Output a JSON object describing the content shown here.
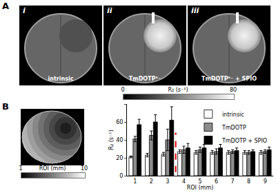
{
  "figure": {
    "panel_A": {
      "label": "A",
      "images": [
        {
          "label": "i",
          "caption": "intrinsic"
        },
        {
          "label": "ii",
          "caption": "TmDOTP⁵⁻"
        },
        {
          "label": "iii",
          "caption": "TmDOTP⁵⁻ + SPIO"
        }
      ],
      "colorbar": {
        "title": "R₂ (s⁻¹)",
        "range": [
          0,
          80
        ],
        "ticks": [
          0,
          80
        ]
      }
    },
    "panel_B": {
      "label": "B",
      "colorbar": {
        "title": "ROI (mm)",
        "range": [
          1,
          10
        ],
        "ticks": [
          1,
          10
        ]
      }
    }
  },
  "chart_data": {
    "type": "bar",
    "x_label": "ROI (mm)",
    "y_label": "R₂ (s⁻¹)",
    "categories": [
      "1",
      "2",
      "3",
      "4",
      "5",
      "6",
      "7",
      "8",
      "9"
    ],
    "series": [
      {
        "name": "intrinsic",
        "color": "#ffffff",
        "values": [
          21,
          23,
          24,
          27,
          26,
          26,
          26,
          26,
          26
        ],
        "error": [
          1,
          2,
          2,
          2,
          2,
          2,
          2,
          2,
          2
        ]
      },
      {
        "name": "TmDOTP",
        "color": "#8c8c8c",
        "values": [
          41,
          45,
          40,
          29,
          29,
          27,
          27,
          26,
          27
        ],
        "error": [
          3,
          5,
          12,
          4,
          3,
          3,
          2,
          2,
          2
        ]
      },
      {
        "name": "TmDOTP + SPIO",
        "color": "#000000",
        "values": [
          57,
          60,
          62,
          31,
          31,
          31,
          28,
          27,
          29
        ],
        "error": [
          6,
          8,
          15,
          5,
          4,
          4,
          3,
          2,
          3
        ]
      }
    ],
    "ylim": [
      0,
      80
    ],
    "yticks": [
      0,
      20,
      40,
      60,
      80
    ],
    "grid": false,
    "legend": "upper right",
    "annotations": [
      {
        "type": "line",
        "after_category": "3",
        "color": "#e00000",
        "line_style": "dashed"
      }
    ]
  }
}
